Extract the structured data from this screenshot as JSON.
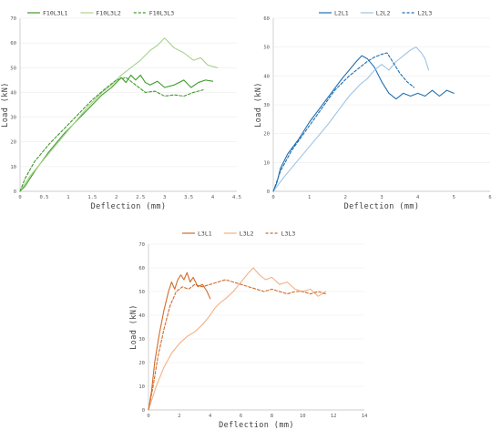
{
  "chart_data": [
    {
      "type": "line",
      "xlabel": "Deflection (mm)",
      "ylabel": "Load (kN)",
      "xlim": [
        0,
        4.5
      ],
      "ylim": [
        0,
        70
      ],
      "xticks": [
        0,
        0.5,
        1,
        1.5,
        2,
        2.5,
        3,
        3.5,
        4,
        4.5
      ],
      "yticks": [
        0,
        10,
        20,
        30,
        40,
        50,
        60,
        70
      ],
      "xtick_labels": [
        "0",
        "0.5",
        "1",
        "1.5",
        "2",
        "2.5",
        "3",
        "3.5",
        "4",
        "4.5"
      ],
      "ytick_labels": [
        "0",
        "10",
        "20",
        "30",
        "40",
        "50",
        "60",
        "70"
      ],
      "grid": true,
      "legend": "top",
      "series": [
        {
          "name": "F10L3L1",
          "color": "#3f9b2a",
          "style": "solid",
          "points": [
            [
              0,
              0
            ],
            [
              0.1,
              2
            ],
            [
              0.3,
              8
            ],
            [
              0.6,
              16
            ],
            [
              0.9,
              23
            ],
            [
              1.2,
              29
            ],
            [
              1.5,
              35
            ],
            [
              1.7,
              39
            ],
            [
              1.9,
              42
            ],
            [
              2.0,
              44
            ],
            [
              2.1,
              46
            ],
            [
              2.2,
              44
            ],
            [
              2.3,
              47
            ],
            [
              2.4,
              45
            ],
            [
              2.5,
              47
            ],
            [
              2.6,
              44
            ],
            [
              2.7,
              43
            ],
            [
              2.85,
              44.5
            ],
            [
              3.0,
              42
            ],
            [
              3.2,
              43
            ],
            [
              3.4,
              45
            ],
            [
              3.55,
              42
            ],
            [
              3.7,
              44
            ],
            [
              3.85,
              45
            ],
            [
              4.0,
              44.5
            ]
          ]
        },
        {
          "name": "F10L3L2",
          "color": "#a9d18e",
          "style": "solid",
          "points": [
            [
              0,
              0
            ],
            [
              0.2,
              6
            ],
            [
              0.5,
              13
            ],
            [
              0.8,
              20
            ],
            [
              1.1,
              27
            ],
            [
              1.4,
              34
            ],
            [
              1.7,
              40
            ],
            [
              1.9,
              43
            ],
            [
              2.1,
              47
            ],
            [
              2.3,
              50
            ],
            [
              2.5,
              53
            ],
            [
              2.7,
              57
            ],
            [
              2.85,
              59
            ],
            [
              3.0,
              62
            ],
            [
              3.1,
              60
            ],
            [
              3.2,
              58
            ],
            [
              3.4,
              56
            ],
            [
              3.6,
              53
            ],
            [
              3.75,
              54
            ],
            [
              3.9,
              51
            ],
            [
              4.1,
              50
            ]
          ]
        },
        {
          "name": "F10L3L3",
          "color": "#3f9b2a",
          "style": "dashed",
          "points": [
            [
              0,
              0
            ],
            [
              0.1,
              5
            ],
            [
              0.3,
              12
            ],
            [
              0.6,
              19
            ],
            [
              0.9,
              25
            ],
            [
              1.2,
              31
            ],
            [
              1.5,
              37
            ],
            [
              1.8,
              42
            ],
            [
              2.0,
              45
            ],
            [
              2.2,
              46
            ],
            [
              2.4,
              43
            ],
            [
              2.6,
              40
            ],
            [
              2.8,
              40.5
            ],
            [
              3.0,
              38.5
            ],
            [
              3.2,
              39
            ],
            [
              3.4,
              38.5
            ],
            [
              3.6,
              40
            ],
            [
              3.8,
              41
            ]
          ]
        }
      ]
    },
    {
      "type": "line",
      "xlabel": "Deflection (mm)",
      "ylabel": "Load (kN)",
      "xlim": [
        0,
        6
      ],
      "ylim": [
        0,
        60
      ],
      "xticks": [
        0,
        1,
        2,
        3,
        4,
        5,
        6
      ],
      "yticks": [
        0,
        10,
        20,
        30,
        40,
        50,
        60
      ],
      "xtick_labels": [
        "0",
        "1",
        "2",
        "3",
        "4",
        "5",
        "6"
      ],
      "ytick_labels": [
        "0",
        "10",
        "20",
        "30",
        "40",
        "50",
        "60"
      ],
      "grid": true,
      "legend": "top",
      "series": [
        {
          "name": "L2L1",
          "color": "#1f6fb2",
          "style": "solid",
          "points": [
            [
              0,
              0
            ],
            [
              0.1,
              3
            ],
            [
              0.2,
              8
            ],
            [
              0.4,
              13
            ],
            [
              0.7,
              18
            ],
            [
              1.0,
              24
            ],
            [
              1.3,
              29
            ],
            [
              1.6,
              34
            ],
            [
              1.9,
              39
            ],
            [
              2.1,
              42
            ],
            [
              2.3,
              45
            ],
            [
              2.45,
              47
            ],
            [
              2.6,
              46
            ],
            [
              2.8,
              43
            ],
            [
              3.0,
              38
            ],
            [
              3.2,
              34
            ],
            [
              3.4,
              32
            ],
            [
              3.6,
              34
            ],
            [
              3.8,
              33
            ],
            [
              4.0,
              34
            ],
            [
              4.2,
              33
            ],
            [
              4.4,
              35
            ],
            [
              4.6,
              33
            ],
            [
              4.8,
              35
            ],
            [
              5.0,
              34
            ]
          ]
        },
        {
          "name": "L2L2",
          "color": "#9dc3e6",
          "style": "solid",
          "points": [
            [
              0,
              0
            ],
            [
              0.3,
              5
            ],
            [
              0.7,
              11
            ],
            [
              1.1,
              17
            ],
            [
              1.5,
              23
            ],
            [
              1.8,
              28
            ],
            [
              2.1,
              33
            ],
            [
              2.4,
              37
            ],
            [
              2.6,
              39
            ],
            [
              2.8,
              42
            ],
            [
              3.0,
              44
            ],
            [
              3.2,
              42
            ],
            [
              3.4,
              45
            ],
            [
              3.6,
              47
            ],
            [
              3.8,
              49
            ],
            [
              3.95,
              50
            ],
            [
              4.1,
              48
            ],
            [
              4.2,
              46
            ],
            [
              4.3,
              42
            ]
          ]
        },
        {
          "name": "L2L3",
          "color": "#1f6fb2",
          "style": "dashed",
          "points": [
            [
              0,
              0
            ],
            [
              0.2,
              7
            ],
            [
              0.5,
              14
            ],
            [
              0.9,
              21
            ],
            [
              1.3,
              28
            ],
            [
              1.7,
              35
            ],
            [
              2.1,
              40
            ],
            [
              2.4,
              43
            ],
            [
              2.6,
              45
            ],
            [
              2.8,
              46.5
            ],
            [
              3.0,
              47.5
            ],
            [
              3.15,
              48
            ],
            [
              3.3,
              45
            ],
            [
              3.5,
              41
            ],
            [
              3.7,
              38
            ],
            [
              3.9,
              36
            ]
          ]
        }
      ]
    },
    {
      "type": "line",
      "xlabel": "Deflection (mm)",
      "ylabel": "Load (kN)",
      "xlim": [
        0,
        14
      ],
      "ylim": [
        0,
        70
      ],
      "xticks": [
        0,
        2,
        4,
        6,
        8,
        10,
        12,
        14
      ],
      "yticks": [
        0,
        10,
        20,
        30,
        40,
        50,
        60,
        70
      ],
      "xtick_labels": [
        "0",
        "2",
        "4",
        "6",
        "8",
        "10",
        "12",
        "14"
      ],
      "ytick_labels": [
        "0",
        "10",
        "20",
        "30",
        "40",
        "50",
        "60",
        "70"
      ],
      "grid": true,
      "legend": "top",
      "series": [
        {
          "name": "L3L1",
          "color": "#d26a2b",
          "style": "solid",
          "points": [
            [
              0,
              0
            ],
            [
              0.2,
              8
            ],
            [
              0.4,
              20
            ],
            [
              0.7,
              32
            ],
            [
              1.0,
              42
            ],
            [
              1.3,
              50
            ],
            [
              1.5,
              54
            ],
            [
              1.7,
              51
            ],
            [
              1.9,
              55
            ],
            [
              2.1,
              57
            ],
            [
              2.3,
              55
            ],
            [
              2.5,
              58
            ],
            [
              2.7,
              54
            ],
            [
              2.9,
              56
            ],
            [
              3.2,
              52
            ],
            [
              3.5,
              53
            ],
            [
              3.8,
              50
            ],
            [
              4.0,
              47
            ]
          ]
        },
        {
          "name": "L3L2",
          "color": "#f4b183",
          "style": "solid",
          "points": [
            [
              0,
              0
            ],
            [
              0.5,
              10
            ],
            [
              1.0,
              18
            ],
            [
              1.5,
              24
            ],
            [
              2.0,
              28
            ],
            [
              2.5,
              31
            ],
            [
              3.0,
              33
            ],
            [
              3.5,
              36
            ],
            [
              4.0,
              40
            ],
            [
              4.3,
              43
            ],
            [
              4.6,
              45
            ],
            [
              5.0,
              47
            ],
            [
              5.5,
              50
            ],
            [
              6.0,
              54
            ],
            [
              6.5,
              58
            ],
            [
              6.8,
              60
            ],
            [
              7.2,
              57
            ],
            [
              7.6,
              55
            ],
            [
              8.0,
              56
            ],
            [
              8.5,
              53
            ],
            [
              9.0,
              54
            ],
            [
              9.5,
              51
            ],
            [
              10.0,
              50
            ],
            [
              10.5,
              51
            ],
            [
              11.0,
              48
            ],
            [
              11.5,
              50
            ]
          ]
        },
        {
          "name": "L3L3",
          "color": "#d26a2b",
          "style": "dashed",
          "points": [
            [
              0,
              0
            ],
            [
              0.3,
              10
            ],
            [
              0.6,
              22
            ],
            [
              1.0,
              34
            ],
            [
              1.4,
              44
            ],
            [
              1.8,
              50
            ],
            [
              2.2,
              52
            ],
            [
              2.6,
              51
            ],
            [
              3.0,
              53
            ],
            [
              3.5,
              52
            ],
            [
              4.0,
              53
            ],
            [
              4.5,
              54
            ],
            [
              5.0,
              55
            ],
            [
              5.5,
              54
            ],
            [
              6.0,
              53
            ],
            [
              6.5,
              52
            ],
            [
              7.0,
              51
            ],
            [
              7.5,
              50
            ],
            [
              8.0,
              51
            ],
            [
              8.5,
              50
            ],
            [
              9.0,
              49
            ],
            [
              9.5,
              50
            ],
            [
              10.0,
              50
            ],
            [
              10.5,
              49
            ],
            [
              11.0,
              50
            ],
            [
              11.5,
              49
            ]
          ]
        }
      ]
    }
  ]
}
